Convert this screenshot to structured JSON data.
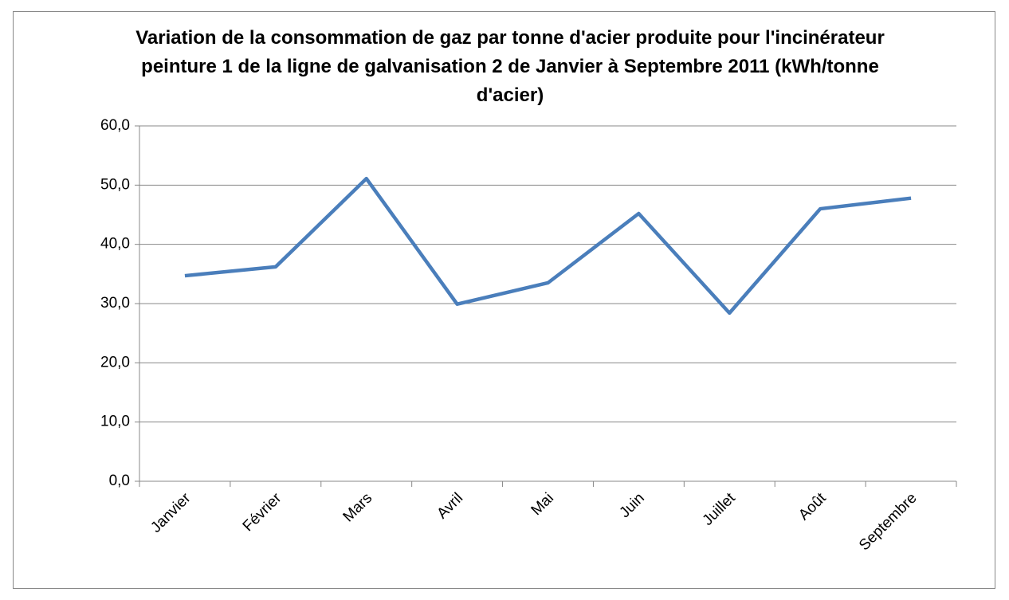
{
  "chart_data": {
    "type": "line",
    "title": "Variation de la consommation de gaz par tonne d'acier produite pour l'incinérateur peinture 1 de la ligne de galvanisation 2 de Janvier à Septembre 2011 (kWh/tonne d'acier)",
    "categories": [
      "Janvier",
      "Février",
      "Mars",
      "Avril",
      "Mai",
      "Juin",
      "Juillet",
      "Août",
      "Septembre"
    ],
    "values": [
      34.7,
      36.2,
      51.1,
      29.9,
      33.5,
      45.2,
      28.4,
      46.0,
      47.8
    ],
    "color": "#4a7ebb",
    "ylim": [
      0,
      60
    ],
    "yticks": [
      {
        "value": 0,
        "label": "0,0"
      },
      {
        "value": 10,
        "label": "10,0"
      },
      {
        "value": 20,
        "label": "20,0"
      },
      {
        "value": 30,
        "label": "30,0"
      },
      {
        "value": 40,
        "label": "40,0"
      },
      {
        "value": 50,
        "label": "50,0"
      },
      {
        "value": 60,
        "label": "60,0"
      }
    ],
    "grid": true
  }
}
